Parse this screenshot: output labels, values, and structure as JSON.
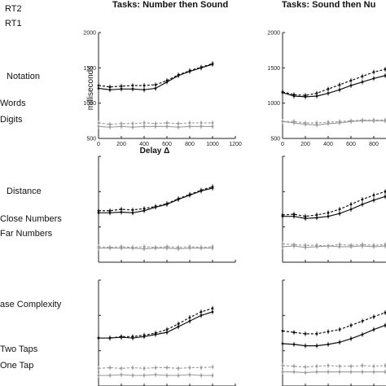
{
  "legend": {
    "rt2": "RT2",
    "rt1": "RT1"
  },
  "columns": [
    "Tasks: Number then Sound",
    "Tasks: Sound then Nu"
  ],
  "rows": [
    {
      "factor": "Notation",
      "cond_a": "Words",
      "cond_b": "Digits"
    },
    {
      "factor": "Distance",
      "cond_a": "Close Numbers",
      "cond_b": "Far Numbers"
    },
    {
      "factor": "ase Complexity",
      "cond_a": "Two Taps",
      "cond_b": "One Tap"
    }
  ],
  "axis_labels": {
    "ylabel": "milliseconds",
    "xlabel": "Delay Δ"
  },
  "y_ticks": [
    "500",
    "1000",
    "1500",
    "2000"
  ],
  "x_ticks": [
    "0",
    "200",
    "400",
    "600",
    "800",
    "1000",
    "1200"
  ],
  "chart_data": {
    "type": "line",
    "x": [
      0,
      100,
      200,
      300,
      400,
      500,
      600,
      700,
      800,
      900,
      1000
    ],
    "xlim": [
      0,
      1200
    ],
    "ylim": [
      500,
      2000
    ],
    "ylabel": "milliseconds",
    "xlabel": "Delay Δ",
    "panels": [
      {
        "column": "Tasks: Number then Sound",
        "row": "Notation",
        "series": [
          {
            "values": [
              1250,
              1230,
              1240,
              1250,
              1250,
              1260,
              1320,
              1400,
              1460,
              1510,
              1560
            ],
            "style": "dark-dashed"
          },
          {
            "values": [
              1210,
              1190,
              1200,
              1200,
              1190,
              1210,
              1300,
              1390,
              1450,
              1500,
              1550
            ],
            "style": "dark-solid"
          },
          {
            "values": [
              720,
              700,
              710,
              710,
              720,
              710,
              720,
              710,
              720,
              720,
              720
            ],
            "style": "light-dashed"
          },
          {
            "values": [
              670,
              660,
              670,
              660,
              670,
              670,
              670,
              660,
              670,
              670,
              670
            ],
            "style": "light-solid"
          }
        ]
      },
      {
        "column": "Tasks: Number then Sound",
        "row": "Distance",
        "series": [
          {
            "values": [
              1230,
              1230,
              1250,
              1240,
              1260,
              1290,
              1330,
              1400,
              1460,
              1520,
              1570
            ],
            "style": "dark-dashed"
          },
          {
            "values": [
              1200,
              1200,
              1210,
              1200,
              1230,
              1280,
              1320,
              1390,
              1450,
              1510,
              1550
            ],
            "style": "dark-solid"
          },
          {
            "values": [
              720,
              710,
              720,
              710,
              720,
              710,
              720,
              710,
              720,
              710,
              720
            ],
            "style": "light-dashed"
          },
          {
            "values": [
              700,
              700,
              700,
              700,
              690,
              700,
              700,
              690,
              700,
              700,
              700
            ],
            "style": "light-solid"
          }
        ]
      },
      {
        "column": "Tasks: Number then Sound",
        "row": "ase Complexity",
        "series": [
          {
            "values": [
              1180,
              1180,
              1200,
              1200,
              1220,
              1250,
              1300,
              1380,
              1470,
              1550,
              1600
            ],
            "style": "dark-dashed"
          },
          {
            "values": [
              1180,
              1180,
              1190,
              1180,
              1200,
              1230,
              1260,
              1340,
              1420,
              1500,
              1550
            ],
            "style": "dark-solid"
          },
          {
            "values": [
              750,
              760,
              750,
              760,
              750,
              760,
              760,
              750,
              760,
              760,
              770
            ],
            "style": "light-dashed"
          },
          {
            "values": [
              650,
              650,
              660,
              650,
              650,
              660,
              650,
              650,
              660,
              650,
              650
            ],
            "style": "light-solid"
          }
        ]
      },
      {
        "column": "Tasks: Sound then Nu",
        "row": "Notation",
        "series": [
          {
            "values": [
              1160,
              1120,
              1110,
              1140,
              1200,
              1260,
              1320,
              1380,
              1440,
              1480,
              1500
            ],
            "style": "dark-dashed"
          },
          {
            "values": [
              1150,
              1100,
              1090,
              1100,
              1140,
              1190,
              1250,
              1300,
              1350,
              1390,
              1420
            ],
            "style": "dark-solid"
          },
          {
            "values": [
              740,
              740,
              720,
              720,
              730,
              740,
              750,
              760,
              760,
              760,
              760
            ],
            "style": "light-dashed"
          },
          {
            "values": [
              740,
              720,
              700,
              690,
              710,
              720,
              740,
              750,
              750,
              750,
              750
            ],
            "style": "light-solid"
          }
        ]
      },
      {
        "column": "Tasks: Sound then Nu",
        "row": "Distance",
        "series": [
          {
            "values": [
              1170,
              1180,
              1150,
              1170,
              1200,
              1250,
              1320,
              1390,
              1450,
              1500,
              1540
            ],
            "style": "dark-dashed"
          },
          {
            "values": [
              1150,
              1150,
              1120,
              1130,
              1150,
              1190,
              1250,
              1320,
              1380,
              1430,
              1470
            ],
            "style": "dark-solid"
          },
          {
            "values": [
              760,
              750,
              740,
              740,
              730,
              750,
              740,
              750,
              740,
              750,
              760
            ],
            "style": "light-dashed"
          },
          {
            "values": [
              720,
              730,
              710,
              720,
              730,
              720,
              720,
              730,
              720,
              730,
              720
            ],
            "style": "light-solid"
          }
        ]
      },
      {
        "column": "Tasks: Sound then Nu",
        "row": "ase Complexity",
        "series": [
          {
            "values": [
              1280,
              1260,
              1240,
              1240,
              1270,
              1300,
              1360,
              1420,
              1480,
              1540,
              1590
            ],
            "style": "dark-dashed"
          },
          {
            "values": [
              1100,
              1090,
              1070,
              1070,
              1090,
              1120,
              1170,
              1230,
              1300,
              1360,
              1410
            ],
            "style": "dark-solid"
          },
          {
            "values": [
              790,
              780,
              770,
              780,
              790,
              780,
              780,
              790,
              780,
              790,
              780
            ],
            "style": "light-dashed"
          },
          {
            "values": [
              700,
              700,
              690,
              700,
              700,
              700,
              700,
              700,
              700,
              700,
              700
            ],
            "style": "light-solid"
          }
        ]
      }
    ]
  }
}
